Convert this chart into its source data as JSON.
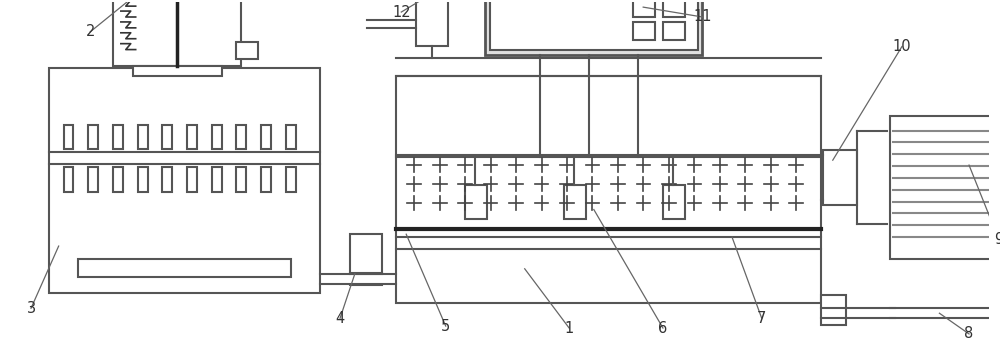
{
  "bg_color": "#ffffff",
  "lc": "#555555",
  "lw": 1.5,
  "glw": 2.5
}
